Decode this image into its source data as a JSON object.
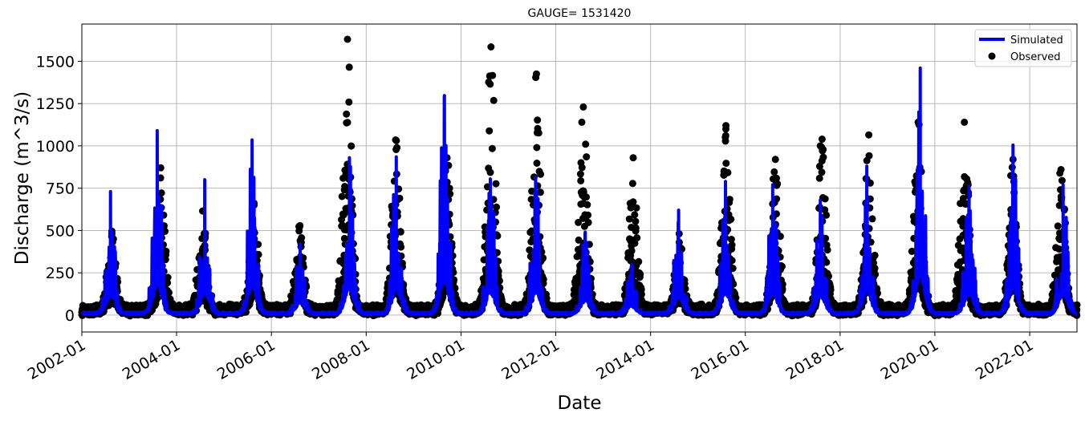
{
  "chart_data": {
    "type": "line",
    "title": "GAUGE= 1531420",
    "xlabel": "Date",
    "ylabel": "Discharge (m^3/s)",
    "x_range": [
      "2002-01-01",
      "2022-12-31"
    ],
    "ylim": [
      -100,
      1720
    ],
    "grid": true,
    "legend_position": "top-right",
    "x_ticks": [
      "2002-01",
      "2004-01",
      "2006-01",
      "2008-01",
      "2010-01",
      "2012-01",
      "2014-01",
      "2016-01",
      "2018-01",
      "2020-01",
      "2022-01"
    ],
    "y_ticks": [
      0,
      250,
      500,
      750,
      1000,
      1250,
      1500
    ],
    "colors": {
      "Simulated": "#0000ff",
      "Observed": "#000000"
    },
    "series": [
      {
        "name": "Simulated",
        "style": "line",
        "annual_peaks": [
          {
            "date": "2002-08-10",
            "value": 730
          },
          {
            "date": "2003-08-05",
            "value": 1090
          },
          {
            "date": "2004-08-05",
            "value": 800
          },
          {
            "date": "2005-08-05",
            "value": 1035
          },
          {
            "date": "2006-08-10",
            "value": 420
          },
          {
            "date": "2007-08-25",
            "value": 930
          },
          {
            "date": "2008-08-20",
            "value": 935
          },
          {
            "date": "2009-08-25",
            "value": 1290
          },
          {
            "date": "2010-08-15",
            "value": 805
          },
          {
            "date": "2011-07-30",
            "value": 815
          },
          {
            "date": "2012-08-15",
            "value": 490
          },
          {
            "date": "2013-08-05",
            "value": 285
          },
          {
            "date": "2014-08-05",
            "value": 620
          },
          {
            "date": "2015-08-01",
            "value": 790
          },
          {
            "date": "2016-07-30",
            "value": 770
          },
          {
            "date": "2017-08-01",
            "value": 680
          },
          {
            "date": "2018-07-25",
            "value": 880
          },
          {
            "date": "2019-09-10",
            "value": 1460
          },
          {
            "date": "2020-09-20",
            "value": 760
          },
          {
            "date": "2021-08-25",
            "value": 1005
          },
          {
            "date": "2022-09-15",
            "value": 770
          }
        ]
      },
      {
        "name": "Observed",
        "style": "scatter",
        "annual_peaks": [
          {
            "date": "2002-08-20",
            "value": 480
          },
          {
            "date": "2003-09-01",
            "value": 870
          },
          {
            "date": "2004-07-20",
            "value": 615
          },
          {
            "date": "2005-08-20",
            "value": 650
          },
          {
            "date": "2006-08-05",
            "value": 520
          },
          {
            "date": "2007-08-10",
            "value": 1630
          },
          {
            "date": "2008-08-15",
            "value": 1035
          },
          {
            "date": "2009-09-15",
            "value": 930
          },
          {
            "date": "2010-08-20",
            "value": 1585
          },
          {
            "date": "2011-08-05",
            "value": 1425
          },
          {
            "date": "2012-08-01",
            "value": 1230
          },
          {
            "date": "2013-08-20",
            "value": 930
          },
          {
            "date": "2014-08-10",
            "value": 430
          },
          {
            "date": "2015-08-05",
            "value": 1120
          },
          {
            "date": "2016-08-20",
            "value": 920
          },
          {
            "date": "2017-08-15",
            "value": 1040
          },
          {
            "date": "2018-08-10",
            "value": 1065
          },
          {
            "date": "2019-08-25",
            "value": 1140
          },
          {
            "date": "2020-08-15",
            "value": 1140
          },
          {
            "date": "2021-08-25",
            "value": 920
          },
          {
            "date": "2022-08-30",
            "value": 860
          }
        ]
      }
    ]
  }
}
